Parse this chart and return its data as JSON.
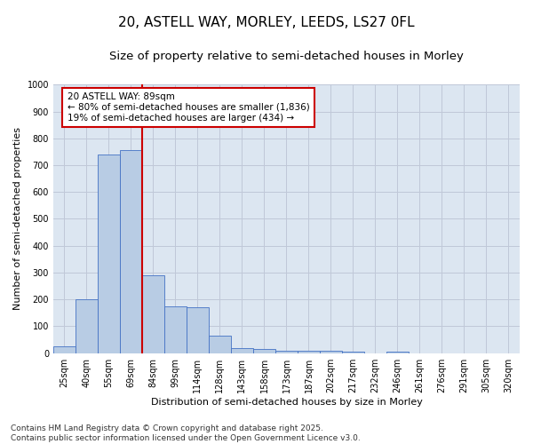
{
  "title_line1": "20, ASTELL WAY, MORLEY, LEEDS, LS27 0FL",
  "title_line2": "Size of property relative to semi-detached houses in Morley",
  "xlabel": "Distribution of semi-detached houses by size in Morley",
  "ylabel": "Number of semi-detached properties",
  "categories": [
    "25sqm",
    "40sqm",
    "55sqm",
    "69sqm",
    "84sqm",
    "99sqm",
    "114sqm",
    "128sqm",
    "143sqm",
    "158sqm",
    "173sqm",
    "187sqm",
    "202sqm",
    "217sqm",
    "232sqm",
    "246sqm",
    "261sqm",
    "276sqm",
    "291sqm",
    "305sqm",
    "320sqm"
  ],
  "values": [
    25,
    200,
    740,
    755,
    290,
    175,
    170,
    65,
    20,
    15,
    10,
    10,
    10,
    5,
    0,
    5,
    0,
    0,
    0,
    0,
    0
  ],
  "bar_color": "#b8cce4",
  "bar_edge_color": "#4472c4",
  "grid_color": "#c0c8d8",
  "background_color": "#dce6f1",
  "vline_x_index": 4,
  "vline_color": "#cc0000",
  "annotation_text": "20 ASTELL WAY: 89sqm\n← 80% of semi-detached houses are smaller (1,836)\n19% of semi-detached houses are larger (434) →",
  "annotation_box_color": "#cc0000",
  "ylim": [
    0,
    1000
  ],
  "yticks": [
    0,
    100,
    200,
    300,
    400,
    500,
    600,
    700,
    800,
    900,
    1000
  ],
  "footer_line1": "Contains HM Land Registry data © Crown copyright and database right 2025.",
  "footer_line2": "Contains public sector information licensed under the Open Government Licence v3.0.",
  "title_fontsize": 11,
  "subtitle_fontsize": 9.5,
  "axis_label_fontsize": 8,
  "tick_fontsize": 7,
  "footer_fontsize": 6.5,
  "annotation_fontsize": 7.5
}
